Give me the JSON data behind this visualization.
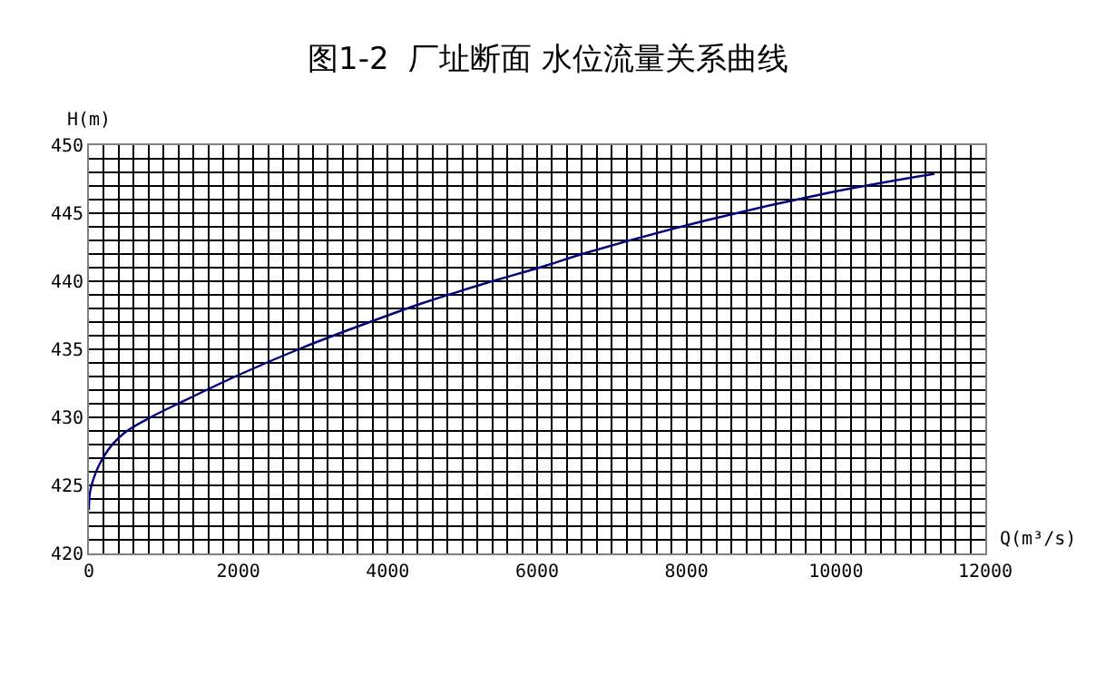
{
  "chart_data": {
    "type": "line",
    "title": "图1-2  厂址断面 水位流量关系曲线",
    "xlabel": "Q(m³/s)",
    "ylabel": "H(m)",
    "x": [
      0,
      30,
      219,
      462,
      826,
      1231,
      2040,
      2850,
      3660,
      4470,
      5279,
      6089,
      6664,
      8283,
      9903,
      11320
    ],
    "series": [
      {
        "color": "#000080",
        "values": [
          423.2,
          424.9,
          427.3,
          428.8,
          430.0,
          431.1,
          433.2,
          435.1,
          436.8,
          438.4,
          439.8,
          441.1,
          442.1,
          444.5,
          446.5,
          447.9
        ]
      }
    ],
    "xlim": [
      0,
      12000
    ],
    "xticks": [
      0,
      2000,
      4000,
      6000,
      8000,
      10000,
      12000
    ],
    "ylim": [
      420,
      450
    ],
    "yticks": [
      420,
      425,
      430,
      435,
      440,
      445,
      450
    ],
    "grid": true,
    "marker": "none",
    "line_style": "solid"
  }
}
